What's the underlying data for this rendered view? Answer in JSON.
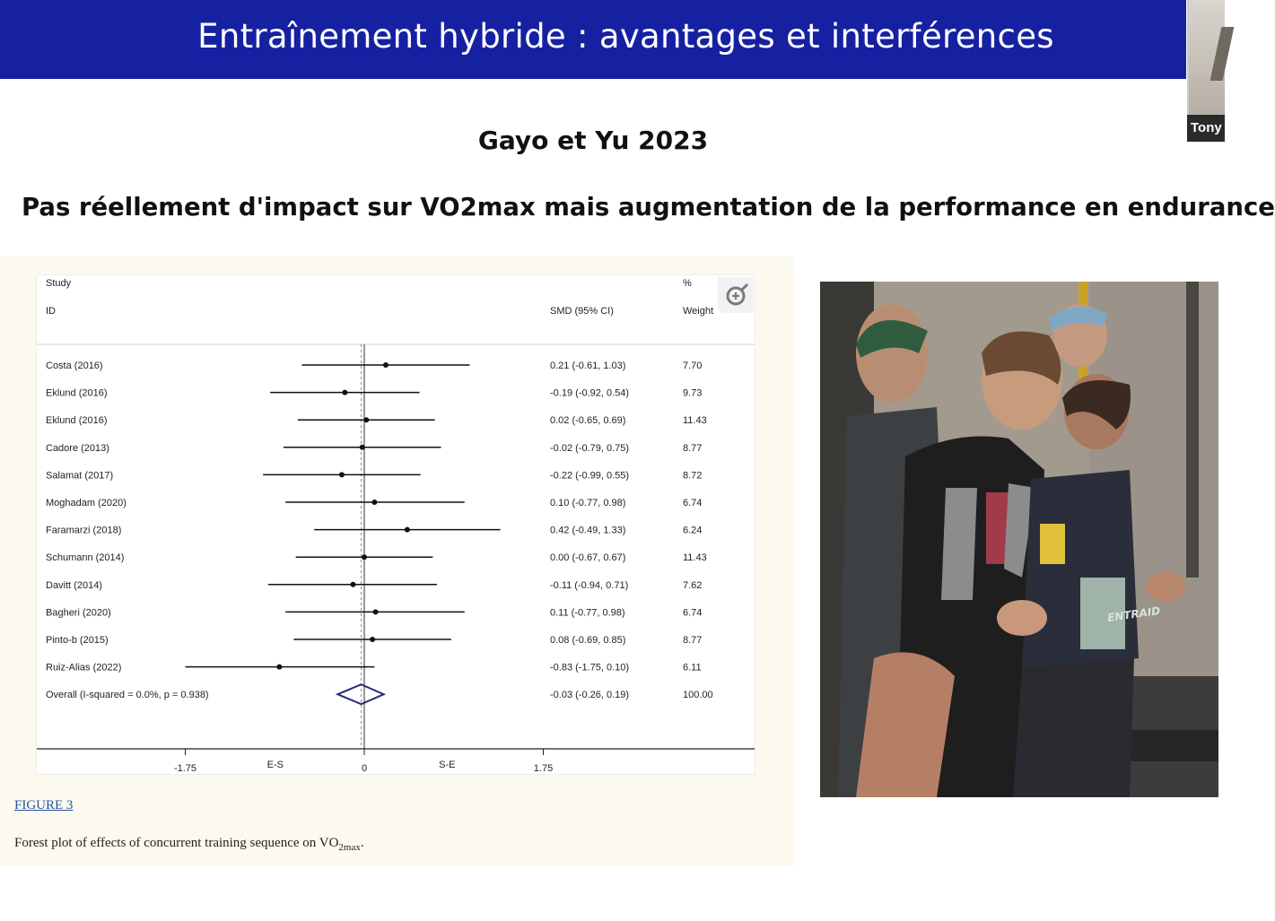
{
  "banner": {
    "title": "Entraînement hybride : avantages et interférences"
  },
  "video": {
    "participant_name": "Tony"
  },
  "slide": {
    "subtitle": "Gayo et Yu 2023",
    "claim": "Pas réellement d'impact sur VO2max mais augmentation de la performance en endurance"
  },
  "figure": {
    "link_label": "FIGURE 3",
    "caption_text": "Forest plot of effects of concurrent training sequence on VO",
    "caption_sub": "2max",
    "caption_end": "."
  },
  "photo": {
    "vest_text": "ENTRAID"
  },
  "colors": {
    "banner": "#1621a2",
    "figure_bg": "#fcf9ee",
    "diamond": "#2a2a7a"
  },
  "icons": {
    "zoom": "zoom-in-icon"
  },
  "chart_data": {
    "type": "forest",
    "headers": {
      "study": "Study",
      "id": "ID",
      "effect": "SMD (95% CI)",
      "weight_pct": "%",
      "weight": "Weight"
    },
    "studies": [
      {
        "label": "Costa  (2016)",
        "smd": 0.21,
        "lo": -0.61,
        "hi": 1.03,
        "ci_text": "0.21 (-0.61, 1.03)",
        "weight": "7.70"
      },
      {
        "label": "Eklund (2016)",
        "smd": -0.19,
        "lo": -0.92,
        "hi": 0.54,
        "ci_text": "-0.19 (-0.92, 0.54)",
        "weight": "9.73"
      },
      {
        "label": "Eklund (2016)",
        "smd": 0.02,
        "lo": -0.65,
        "hi": 0.69,
        "ci_text": "0.02 (-0.65, 0.69)",
        "weight": "11.43"
      },
      {
        "label": "Cadore (2013)",
        "smd": -0.02,
        "lo": -0.79,
        "hi": 0.75,
        "ci_text": "-0.02 (-0.79, 0.75)",
        "weight": "8.77"
      },
      {
        "label": "Salamat (2017)",
        "smd": -0.22,
        "lo": -0.99,
        "hi": 0.55,
        "ci_text": "-0.22 (-0.99, 0.55)",
        "weight": "8.72"
      },
      {
        "label": "Moghadam  (2020)",
        "smd": 0.1,
        "lo": -0.77,
        "hi": 0.98,
        "ci_text": "0.10 (-0.77, 0.98)",
        "weight": "6.74"
      },
      {
        "label": "Faramarzi (2018)",
        "smd": 0.42,
        "lo": -0.49,
        "hi": 1.33,
        "ci_text": "0.42 (-0.49, 1.33)",
        "weight": "6.24"
      },
      {
        "label": "Schumann (2014)",
        "smd": 0.0,
        "lo": -0.67,
        "hi": 0.67,
        "ci_text": "0.00 (-0.67, 0.67)",
        "weight": "11.43"
      },
      {
        "label": "Davitt (2014)",
        "smd": -0.11,
        "lo": -0.94,
        "hi": 0.71,
        "ci_text": "-0.11 (-0.94, 0.71)",
        "weight": "7.62"
      },
      {
        "label": "Bagheri (2020)",
        "smd": 0.11,
        "lo": -0.77,
        "hi": 0.98,
        "ci_text": "0.11 (-0.77, 0.98)",
        "weight": "6.74"
      },
      {
        "label": "Pinto-b (2015)",
        "smd": 0.08,
        "lo": -0.69,
        "hi": 0.85,
        "ci_text": "0.08 (-0.69, 0.85)",
        "weight": "8.77"
      },
      {
        "label": "Ruiz-Alias (2022)",
        "smd": -0.83,
        "lo": -1.75,
        "hi": 0.1,
        "ci_text": "-0.83 (-1.75, 0.10)",
        "weight": "6.11"
      }
    ],
    "overall": {
      "label": "Overall  (I-squared = 0.0%, p = 0.938)",
      "smd": -0.03,
      "lo": -0.26,
      "hi": 0.19,
      "ci_text": "-0.03 (-0.26, 0.19)",
      "weight": "100.00"
    },
    "x_ticks": [
      "-1.75",
      "0",
      "1.75"
    ],
    "x_tick_values": [
      -1.75,
      0,
      1.75
    ],
    "x_annotations": [
      {
        "text": "E-S",
        "value": -0.87
      },
      {
        "text": "S-E",
        "value": 0.81
      }
    ],
    "xlim": [
      -1.75,
      1.75
    ]
  }
}
